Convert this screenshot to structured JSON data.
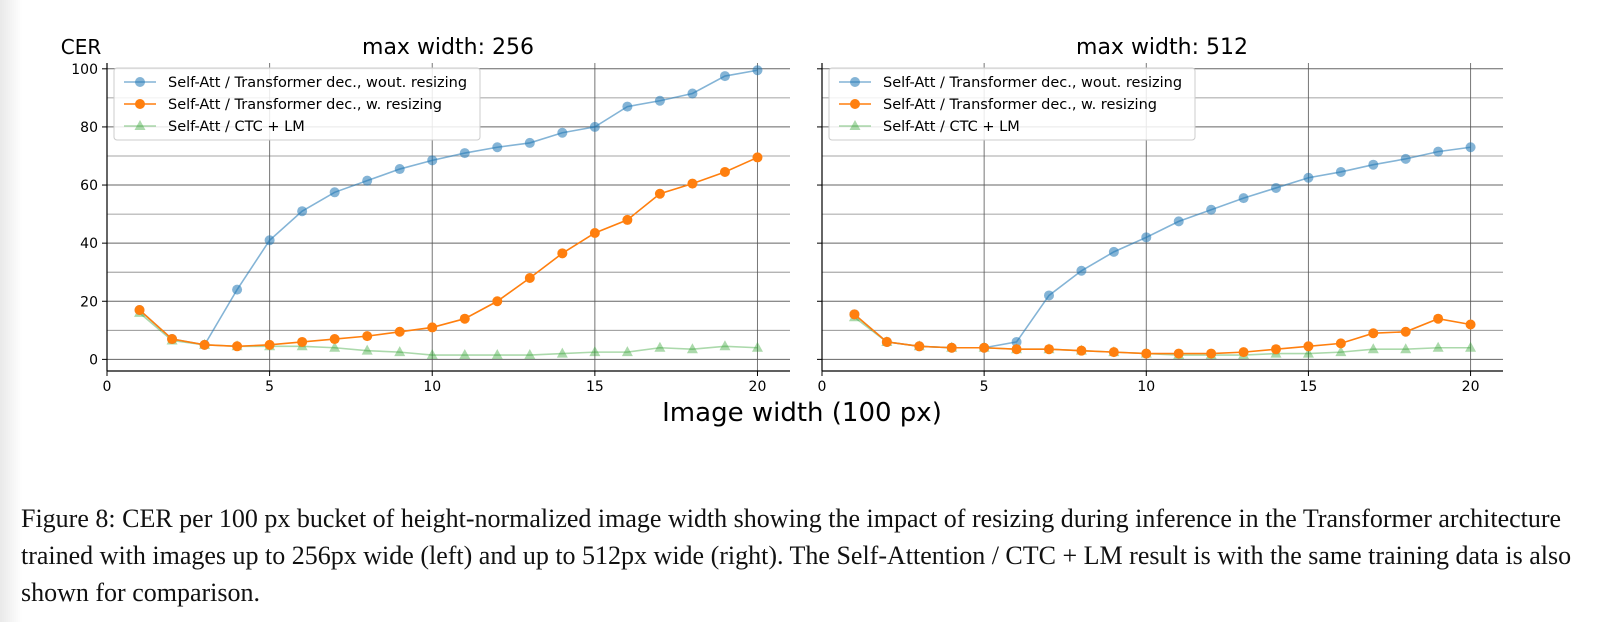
{
  "shared": {
    "ylabel": "CER",
    "xlabel": "Image width (100 px)"
  },
  "colors": {
    "series_0": "#1f77b4",
    "series_1": "#ff7f0e",
    "series_2": "#2ca02c",
    "grid": "#555555"
  },
  "chart_data": [
    {
      "type": "line",
      "title": "max width: 256",
      "xlim": [
        0,
        21
      ],
      "ylim": [
        -4,
        102
      ],
      "xticks": [
        0,
        5,
        10,
        15,
        20
      ],
      "yticks": [
        0,
        20,
        40,
        60,
        80,
        100
      ],
      "grid": true,
      "legend_position": "top-left",
      "x": [
        1,
        2,
        3,
        4,
        5,
        6,
        7,
        8,
        9,
        10,
        11,
        12,
        13,
        14,
        15,
        16,
        17,
        18,
        19,
        20
      ],
      "series": [
        {
          "name": "Self-Att / Transformer dec., wout. resizing",
          "marker": "circle",
          "values": [
            17,
            7,
            5,
            24,
            41,
            51,
            57.5,
            61.5,
            65.5,
            68.5,
            71,
            73,
            74.5,
            78,
            80,
            87,
            89,
            91.5,
            97.5,
            99.5
          ]
        },
        {
          "name": "Self-Att / Transformer dec., w. resizing",
          "marker": "circle",
          "values": [
            17,
            7,
            5,
            4.5,
            5,
            6,
            7,
            8,
            9.5,
            11,
            14,
            20,
            28,
            36.5,
            43.5,
            48,
            57,
            60.5,
            64.5,
            69.5
          ]
        },
        {
          "name": "Self-Att / CTC  + LM",
          "marker": "triangle",
          "values": [
            16,
            6.5,
            5,
            4.5,
            4.5,
            4.5,
            4,
            3,
            2.5,
            1.5,
            1.5,
            1.5,
            1.5,
            2,
            2.5,
            2.5,
            4,
            3.5,
            4.5,
            4
          ]
        }
      ]
    },
    {
      "type": "line",
      "title": "max width: 512",
      "xlim": [
        0,
        21
      ],
      "ylim": [
        -4,
        102
      ],
      "xticks": [
        0,
        5,
        10,
        15,
        20
      ],
      "yticks": [
        0,
        20,
        40,
        60,
        80,
        100
      ],
      "grid": true,
      "legend_position": "top-left",
      "x": [
        1,
        2,
        3,
        4,
        5,
        6,
        7,
        8,
        9,
        10,
        11,
        12,
        13,
        14,
        15,
        16,
        17,
        18,
        19,
        20
      ],
      "series": [
        {
          "name": "Self-Att / Transformer dec., wout. resizing",
          "marker": "circle",
          "values": [
            15.5,
            6,
            4.5,
            4,
            4,
            6,
            22,
            30.5,
            37,
            42,
            47.5,
            51.5,
            55.5,
            59,
            62.5,
            64.5,
            67,
            69,
            71.5,
            73
          ]
        },
        {
          "name": "Self-Att / Transformer dec., w. resizing",
          "marker": "circle",
          "values": [
            15.5,
            6,
            4.5,
            4,
            4,
            3.5,
            3.5,
            3,
            2.5,
            2,
            2,
            2,
            2.5,
            3.5,
            4.5,
            5.5,
            9,
            9.5,
            14,
            12
          ]
        },
        {
          "name": "Self-Att / CTC  + LM",
          "marker": "triangle",
          "values": [
            14.5,
            6,
            4.5,
            4,
            4,
            3.5,
            3.5,
            3,
            2.5,
            2,
            1.5,
            1.5,
            1.5,
            2,
            2,
            2.5,
            3.5,
            3.5,
            4,
            4
          ]
        }
      ]
    }
  ],
  "caption": "Figure 8: CER per 100 px bucket of height-normalized image width showing the impact of resizing during inference in the Transformer architecture trained with images up to 256px wide (left) and up to 512px wide (right). The Self-Attention / CTC + LM result is with the same training data is also shown for comparison."
}
